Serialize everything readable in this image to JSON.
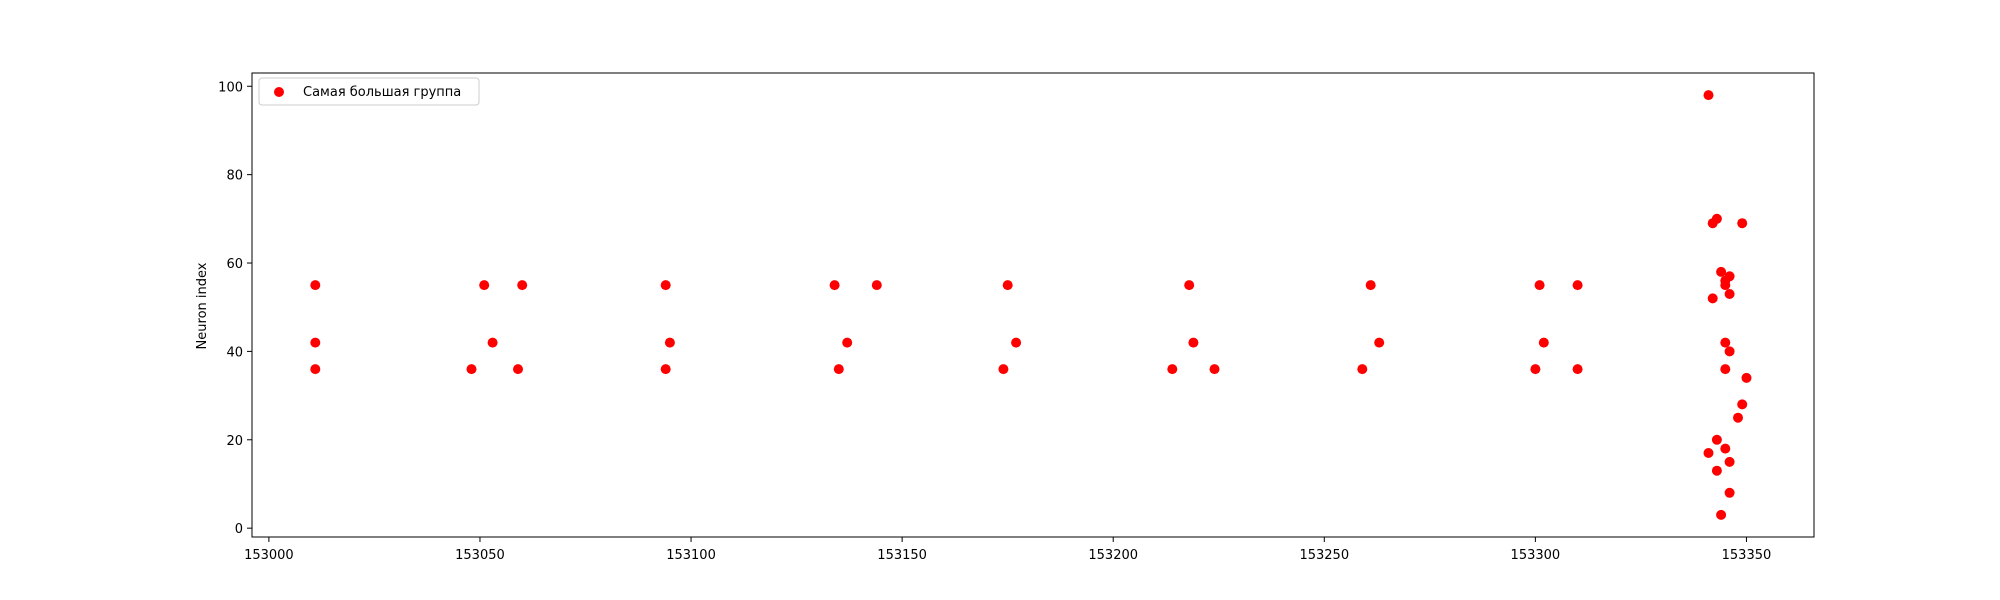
{
  "chart_data": {
    "type": "scatter",
    "title": "",
    "xlabel": "",
    "ylabel": "Neuron index",
    "xlim": [
      152996,
      153366
    ],
    "ylim": [
      -2,
      103
    ],
    "xticks": [
      153000,
      153050,
      153100,
      153150,
      153200,
      153250,
      153300,
      153350
    ],
    "yticks": [
      0,
      20,
      40,
      60,
      80,
      100
    ],
    "grid": false,
    "legend_position": "top-left",
    "series": [
      {
        "name": "Самая большая группа",
        "color": "#ff0000",
        "points": [
          [
            153011,
            55
          ],
          [
            153011,
            42
          ],
          [
            153011,
            36
          ],
          [
            153051,
            55
          ],
          [
            153053,
            42
          ],
          [
            153048,
            36
          ],
          [
            153060,
            55
          ],
          [
            153059,
            36
          ],
          [
            153094,
            55
          ],
          [
            153095,
            42
          ],
          [
            153094,
            36
          ],
          [
            153134,
            55
          ],
          [
            153137,
            42
          ],
          [
            153135,
            36
          ],
          [
            153144,
            55
          ],
          [
            153175,
            55
          ],
          [
            153177,
            42
          ],
          [
            153174,
            36
          ],
          [
            153218,
            55
          ],
          [
            153219,
            42
          ],
          [
            153214,
            36
          ],
          [
            153224,
            36
          ],
          [
            153261,
            55
          ],
          [
            153263,
            42
          ],
          [
            153259,
            36
          ],
          [
            153301,
            55
          ],
          [
            153302,
            42
          ],
          [
            153300,
            36
          ],
          [
            153310,
            55
          ],
          [
            153310,
            36
          ],
          [
            153341,
            98
          ],
          [
            153343,
            70
          ],
          [
            153342,
            69
          ],
          [
            153349,
            69
          ],
          [
            153344,
            58
          ],
          [
            153346,
            57
          ],
          [
            153345,
            56
          ],
          [
            153345,
            55
          ],
          [
            153346,
            53
          ],
          [
            153342,
            52
          ],
          [
            153345,
            42
          ],
          [
            153346,
            40
          ],
          [
            153345,
            36
          ],
          [
            153350,
            34
          ],
          [
            153349,
            28
          ],
          [
            153348,
            25
          ],
          [
            153343,
            20
          ],
          [
            153345,
            18
          ],
          [
            153341,
            17
          ],
          [
            153346,
            15
          ],
          [
            153343,
            13
          ],
          [
            153346,
            8
          ],
          [
            153344,
            3
          ]
        ]
      }
    ]
  }
}
